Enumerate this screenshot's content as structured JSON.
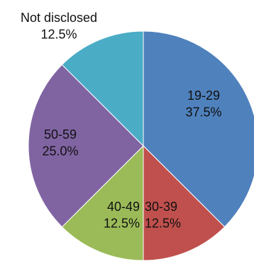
{
  "chart_data": {
    "type": "pie",
    "title": "",
    "start": "12 o'clock",
    "direction": "clockwise",
    "slices": [
      {
        "category": "19-29",
        "value": 37.5,
        "label": "37.5%",
        "color": "#4F81BD"
      },
      {
        "category": "30-39",
        "value": 12.5,
        "label": "12.5%",
        "color": "#C0504D"
      },
      {
        "category": "40-49",
        "value": 12.5,
        "label": "12.5%",
        "color": "#9BBB59"
      },
      {
        "category": "50-59",
        "value": 25.0,
        "label": "25.0%",
        "color": "#8064A2"
      },
      {
        "category": "Not disclosed",
        "value": 12.5,
        "label": "12.5%",
        "color": "#4BACC6"
      }
    ]
  }
}
